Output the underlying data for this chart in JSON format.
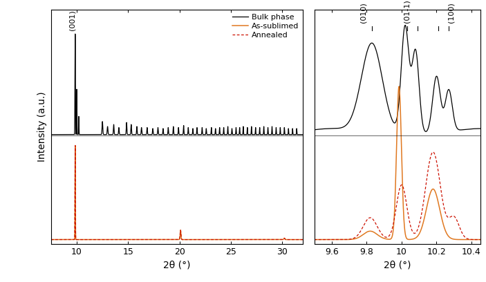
{
  "left_xlim": [
    7.5,
    32.0
  ],
  "left_xticks": [
    10,
    15,
    20,
    25,
    30
  ],
  "right_xlim": [
    9.5,
    10.45
  ],
  "right_xticks": [
    9.6,
    9.8,
    10.0,
    10.2,
    10.4
  ],
  "right_xticklabels": [
    "9.6",
    "9.8",
    "10",
    "10.2",
    "10.4"
  ],
  "xlabel": "2θ (°)",
  "ylabel": "Intensity (a.u.)",
  "bulk_color": "#000000",
  "sublimed_color": "#e07820",
  "annealed_color": "#cc1100",
  "legend_bulk": "Bulk phase",
  "legend_sublimed": "As-sublimed",
  "legend_annealed": "Annealed",
  "ann_001": "(001)",
  "ann_010": "(010)",
  "ann_011bar": "(01-1)",
  "ann_100": "(100)"
}
